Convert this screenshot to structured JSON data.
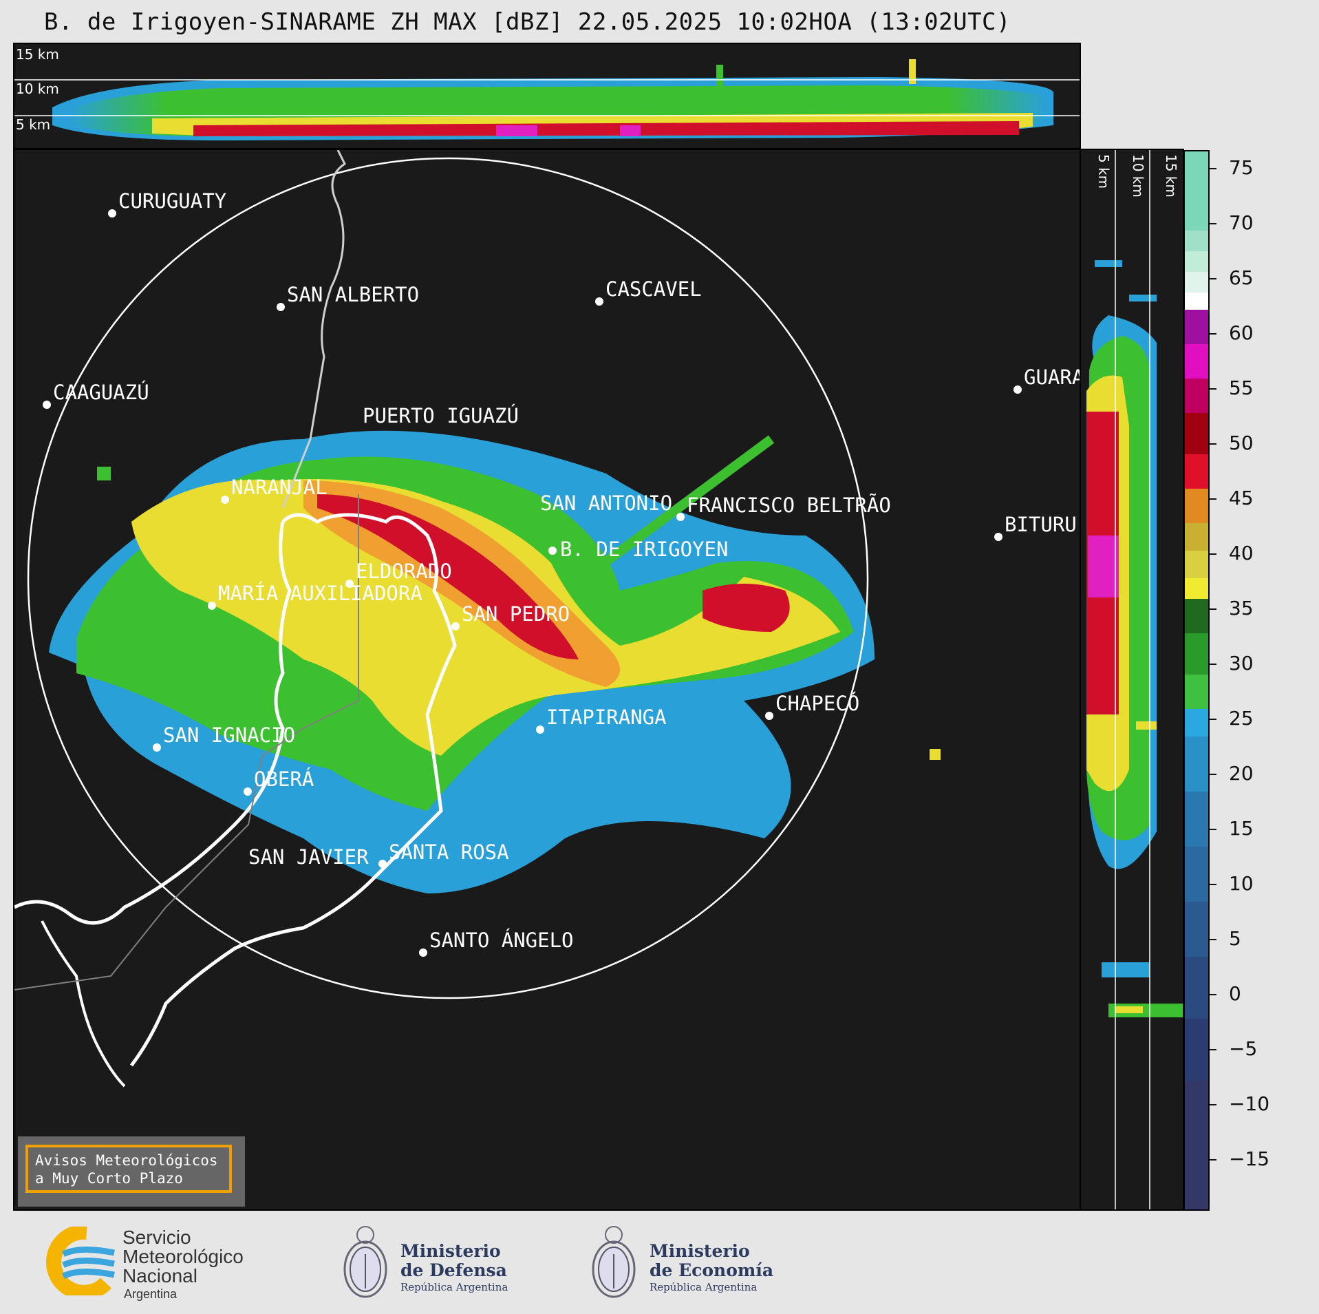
{
  "title": "B. de Irigoyen-SINARAME ZH MAX [dBZ] 22.05.2025 10:02HOA (13:02UTC)",
  "top_panel": {
    "altitude_labels": [
      "15 km",
      "10 km",
      "5 km"
    ]
  },
  "right_panel": {
    "altitude_labels": [
      "5 km",
      "10 km",
      "15 km"
    ]
  },
  "map": {
    "cities": [
      {
        "name": "CURUGUATY"
      },
      {
        "name": "SAN ALBERTO"
      },
      {
        "name": "CASCAVEL"
      },
      {
        "name": "CAAGUAZÚ"
      },
      {
        "name": "PUERTO IGUAZÚ"
      },
      {
        "name": "GUARA"
      },
      {
        "name": "NARANJAL"
      },
      {
        "name": "SAN ANTONIO"
      },
      {
        "name": "FRANCISCO BELTRÃO"
      },
      {
        "name": "BITURU"
      },
      {
        "name": "B. DE IRIGOYEN"
      },
      {
        "name": "ELDORADO"
      },
      {
        "name": "MARÍA AUXILIADORA"
      },
      {
        "name": "SAN PEDRO"
      },
      {
        "name": "CHAPECÓ"
      },
      {
        "name": "ITAPIRANGA"
      },
      {
        "name": "SAN IGNACIO"
      },
      {
        "name": "OBERÁ"
      },
      {
        "name": "SAN JAVIER"
      },
      {
        "name": "SANTA ROSA"
      },
      {
        "name": "SANTO ÁNGELO"
      }
    ],
    "badge": {
      "line1": "Avisos Meteorológicos",
      "line2": "a Muy Corto Plazo"
    }
  },
  "colorbar": {
    "unit": "dBZ",
    "ticks": [
      "75",
      "70",
      "65",
      "60",
      "55",
      "50",
      "45",
      "40",
      "35",
      "30",
      "25",
      "20",
      "15",
      "10",
      "5",
      "0",
      "−5",
      "−10",
      "−15"
    ]
  },
  "logos": {
    "smn": {
      "line1": "Servicio",
      "line2": "Meteorológico",
      "line3": "Nacional",
      "line4": "Argentina"
    },
    "defensa": {
      "line1": "Ministerio",
      "line2": "de Defensa",
      "line3": "República Argentina"
    },
    "economia": {
      "line1": "Ministerio",
      "line2": "de Economía",
      "line3": "República Argentina"
    }
  }
}
